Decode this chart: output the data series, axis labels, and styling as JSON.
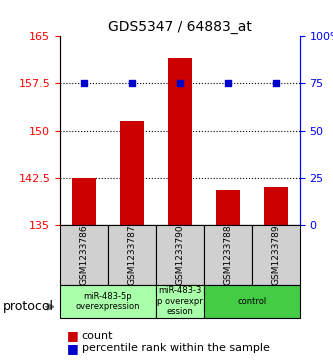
{
  "title": "GDS5347 / 64883_at",
  "samples": [
    "GSM1233786",
    "GSM1233787",
    "GSM1233790",
    "GSM1233788",
    "GSM1233789"
  ],
  "bar_values": [
    142.5,
    151.5,
    161.5,
    140.5,
    141.0
  ],
  "percentile_values": [
    75,
    75,
    75,
    75,
    75
  ],
  "bar_color": "#cc0000",
  "dot_color": "#0000cc",
  "ylim_left": [
    135,
    165
  ],
  "ylim_right": [
    0,
    100
  ],
  "yticks_left": [
    135,
    142.5,
    150,
    157.5,
    165
  ],
  "yticks_right": [
    0,
    25,
    50,
    75,
    100
  ],
  "ytick_labels_left": [
    "135",
    "142.5",
    "150",
    "157.5",
    "165"
  ],
  "ytick_labels_right": [
    "0",
    "25",
    "50",
    "75",
    "100%"
  ],
  "hlines": [
    142.5,
    150,
    157.5
  ],
  "groups": [
    {
      "label": "miR-483-5p\noverexpression",
      "samples": [
        0,
        1
      ],
      "color": "#aaffaa"
    },
    {
      "label": "miR-483-3\np overexpr\nession",
      "samples": [
        2
      ],
      "color": "#aaffaa"
    },
    {
      "label": "control",
      "samples": [
        3,
        4
      ],
      "color": "#44cc44"
    }
  ],
  "protocol_label": "protocol",
  "legend_count_label": "count",
  "legend_percentile_label": "percentile rank within the sample",
  "bar_width": 0.5
}
